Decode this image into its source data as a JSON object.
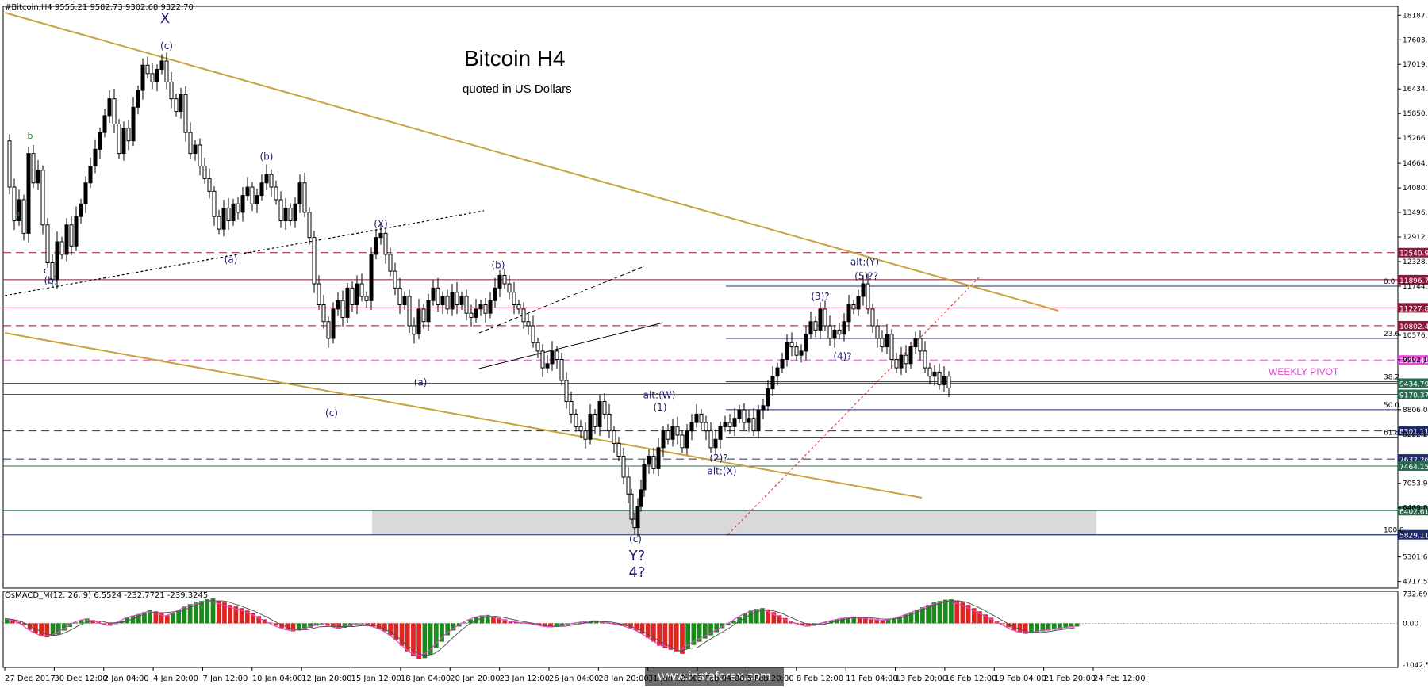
{
  "header": {
    "symbol_info": "#Bitcoin,H4  9555.21 9582.73 9302.68 9322.70"
  },
  "title": "Bitcoin H4",
  "subtitle": "quoted in US Dollars",
  "weekly_pivot_label": "WEEKLY PIVOT",
  "watermark": "www.instaforex.com",
  "colors": {
    "bull_candle": "#000000",
    "trend_channel": "#c8a23c",
    "support_band": "#d9d9d9",
    "pivot_line": "#e24ad6",
    "macd_up": "#1a8a1a",
    "macd_down": "#e0241f"
  },
  "chart_data": {
    "type": "candlestick",
    "price_axis": {
      "ticks": [
        18187.55,
        17603.05,
        17019.25,
        16434.9,
        15850.85,
        15266.7,
        14664.2,
        14080.25,
        13496.7,
        12912.6,
        12328.55,
        11744.4,
        10576.2,
        9992.1,
        8806.0,
        8222.2,
        7053.9,
        6469.8,
        5301.6,
        4717.5
      ],
      "min": 4560,
      "max": 18400
    },
    "time_axis": [
      "27 Dec 2017",
      "30 Dec 12:00",
      "2 Jan 04:00",
      "4 Jan 20:00",
      "7 Jan 12:00",
      "10 Jan 04:00",
      "12 Jan 20:00",
      "15 Jan 12:00",
      "18 Jan 04:00",
      "20 Jan 20:00",
      "23 Jan 12:00",
      "26 Jan 04:00",
      "28 Jan 20:00",
      "31 Jan 12:00",
      "3 Feb 04:00",
      "5 Feb 20:00",
      "8 Feb 12:00",
      "11 Feb 04:00",
      "13 Feb 20:00",
      "16 Feb 12:00",
      "19 Feb 04:00",
      "21 Feb 20:00",
      "24 Feb 12:00"
    ],
    "price_path": [
      [
        0,
        15200
      ],
      [
        6,
        14100
      ],
      [
        12,
        13300
      ],
      [
        18,
        13800
      ],
      [
        24,
        13000
      ],
      [
        30,
        14900
      ],
      [
        36,
        14200
      ],
      [
        42,
        14500
      ],
      [
        48,
        13200
      ],
      [
        54,
        12300
      ],
      [
        60,
        11900
      ],
      [
        66,
        12800
      ],
      [
        72,
        12500
      ],
      [
        78,
        13200
      ],
      [
        84,
        12700
      ],
      [
        90,
        13400
      ],
      [
        96,
        13700
      ],
      [
        102,
        14200
      ],
      [
        108,
        14600
      ],
      [
        114,
        15000
      ],
      [
        120,
        15400
      ],
      [
        126,
        15800
      ],
      [
        132,
        16200
      ],
      [
        138,
        15600
      ],
      [
        144,
        14900
      ],
      [
        150,
        15500
      ],
      [
        156,
        15200
      ],
      [
        162,
        16000
      ],
      [
        168,
        16400
      ],
      [
        174,
        17000
      ],
      [
        180,
        16800
      ],
      [
        186,
        16600
      ],
      [
        192,
        16900
      ],
      [
        198,
        17100
      ],
      [
        204,
        16600
      ],
      [
        210,
        16200
      ],
      [
        216,
        15900
      ],
      [
        222,
        16300
      ],
      [
        228,
        15400
      ],
      [
        234,
        14900
      ],
      [
        240,
        15100
      ],
      [
        246,
        14600
      ],
      [
        252,
        14300
      ],
      [
        258,
        14000
      ],
      [
        264,
        13400
      ],
      [
        270,
        13100
      ],
      [
        276,
        13600
      ],
      [
        282,
        13300
      ],
      [
        288,
        13700
      ],
      [
        294,
        13500
      ],
      [
        300,
        13900
      ],
      [
        306,
        14100
      ],
      [
        312,
        13700
      ],
      [
        318,
        13900
      ],
      [
        324,
        14200
      ],
      [
        330,
        14400
      ],
      [
        336,
        14100
      ],
      [
        342,
        13800
      ],
      [
        348,
        13300
      ],
      [
        354,
        13600
      ],
      [
        360,
        13300
      ],
      [
        366,
        13700
      ],
      [
        372,
        14200
      ],
      [
        378,
        13500
      ],
      [
        384,
        12900
      ],
      [
        390,
        11800
      ],
      [
        396,
        11300
      ],
      [
        402,
        10900
      ],
      [
        408,
        10500
      ],
      [
        414,
        11200
      ],
      [
        420,
        11400
      ],
      [
        426,
        11000
      ],
      [
        432,
        11700
      ],
      [
        438,
        11300
      ],
      [
        444,
        11800
      ],
      [
        450,
        11500
      ],
      [
        456,
        11400
      ],
      [
        462,
        12500
      ],
      [
        468,
        12900
      ],
      [
        474,
        13000
      ],
      [
        480,
        12500
      ],
      [
        486,
        12100
      ],
      [
        492,
        11700
      ],
      [
        498,
        11300
      ],
      [
        504,
        11500
      ],
      [
        510,
        10800
      ],
      [
        516,
        10600
      ],
      [
        522,
        11200
      ],
      [
        528,
        10900
      ],
      [
        534,
        11400
      ],
      [
        540,
        11700
      ],
      [
        546,
        11300
      ],
      [
        552,
        11500
      ],
      [
        558,
        11200
      ],
      [
        564,
        11600
      ],
      [
        570,
        11300
      ],
      [
        576,
        11500
      ],
      [
        582,
        11100
      ],
      [
        588,
        11000
      ],
      [
        594,
        11200
      ],
      [
        600,
        11300
      ],
      [
        606,
        11100
      ],
      [
        612,
        11400
      ],
      [
        618,
        11700
      ],
      [
        624,
        12000
      ],
      [
        630,
        11800
      ],
      [
        636,
        11600
      ],
      [
        642,
        11300
      ],
      [
        648,
        11200
      ],
      [
        654,
        10900
      ],
      [
        660,
        10800
      ],
      [
        666,
        10400
      ],
      [
        672,
        10200
      ],
      [
        678,
        9800
      ],
      [
        684,
        9900
      ],
      [
        690,
        10200
      ],
      [
        696,
        10000
      ],
      [
        702,
        9500
      ],
      [
        708,
        9000
      ],
      [
        714,
        8700
      ],
      [
        720,
        8400
      ],
      [
        726,
        8300
      ],
      [
        732,
        8100
      ],
      [
        738,
        8700
      ],
      [
        744,
        8400
      ],
      [
        750,
        9000
      ],
      [
        756,
        8700
      ],
      [
        762,
        8300
      ],
      [
        768,
        8000
      ],
      [
        774,
        7700
      ],
      [
        780,
        7200
      ],
      [
        786,
        6800
      ],
      [
        790,
        6200
      ],
      [
        794,
        6000
      ],
      [
        798,
        6500
      ],
      [
        802,
        6900
      ],
      [
        806,
        7500
      ],
      [
        812,
        7700
      ],
      [
        818,
        7400
      ],
      [
        824,
        7900
      ],
      [
        830,
        8300
      ],
      [
        836,
        8100
      ],
      [
        842,
        8400
      ],
      [
        848,
        8200
      ],
      [
        854,
        7900
      ],
      [
        860,
        8300
      ],
      [
        866,
        8500
      ],
      [
        872,
        8700
      ],
      [
        878,
        8500
      ],
      [
        884,
        8300
      ],
      [
        890,
        7900
      ],
      [
        896,
        8100
      ],
      [
        902,
        8400
      ],
      [
        908,
        8500
      ],
      [
        914,
        8400
      ],
      [
        920,
        8600
      ],
      [
        926,
        8800
      ],
      [
        932,
        8500
      ],
      [
        938,
        8600
      ],
      [
        944,
        8300
      ],
      [
        950,
        8800
      ],
      [
        956,
        8900
      ],
      [
        962,
        9300
      ],
      [
        968,
        9600
      ],
      [
        974,
        9800
      ],
      [
        980,
        10000
      ],
      [
        986,
        10400
      ],
      [
        992,
        10300
      ],
      [
        998,
        10100
      ],
      [
        1004,
        10200
      ],
      [
        1010,
        10600
      ],
      [
        1016,
        10900
      ],
      [
        1022,
        10700
      ],
      [
        1028,
        11200
      ],
      [
        1034,
        10800
      ],
      [
        1040,
        10500
      ],
      [
        1046,
        10700
      ],
      [
        1052,
        10600
      ],
      [
        1058,
        10900
      ],
      [
        1064,
        11300
      ],
      [
        1070,
        11200
      ],
      [
        1076,
        11500
      ],
      [
        1082,
        11800
      ],
      [
        1088,
        11200
      ],
      [
        1094,
        10800
      ],
      [
        1100,
        10500
      ],
      [
        1106,
        10300
      ],
      [
        1112,
        10600
      ],
      [
        1118,
        10000
      ],
      [
        1124,
        9800
      ],
      [
        1130,
        10100
      ],
      [
        1136,
        9900
      ],
      [
        1142,
        10300
      ],
      [
        1148,
        10500
      ],
      [
        1154,
        10200
      ],
      [
        1160,
        9800
      ],
      [
        1166,
        9600
      ],
      [
        1172,
        9700
      ],
      [
        1178,
        9400
      ],
      [
        1184,
        9600
      ],
      [
        1190,
        9322
      ]
    ],
    "horizontal_levels": [
      {
        "price": 12540.97,
        "label": "12540.97",
        "style": "dash",
        "color": "#8b1a3a"
      },
      {
        "price": 11896.71,
        "label": "11896.71",
        "style": "solid",
        "color": "#8b1a3a"
      },
      {
        "price": 11227.89,
        "label": "11227.89",
        "style": "solid",
        "color": "#8b1a3a"
      },
      {
        "price": 10802.45,
        "label": "10802.45",
        "style": "dash",
        "color": "#8b1a3a"
      },
      {
        "price": 9986.41,
        "label": "9986.41",
        "style": "dash",
        "color": "#e24ad6"
      },
      {
        "price": 9434.79,
        "label": "9434.79",
        "style": "solid",
        "color": "#2a6b4f"
      },
      {
        "price": 9170.37,
        "label": "9170.37",
        "style": "solid",
        "color": "#2a6b4f"
      },
      {
        "price": 8301.11,
        "label": "8301.11",
        "style": "dash",
        "color": "#1f2b6e"
      },
      {
        "price": 7632.26,
        "label": "7632.26",
        "style": "dash",
        "color": "#1f2b6e"
      },
      {
        "price": 7464.15,
        "label": "7464.15",
        "style": "solid",
        "color": "#2a6b4f"
      },
      {
        "price": 6402.61,
        "label": "6402.61",
        "style": "solid",
        "color": "#2a6b4f"
      },
      {
        "price": 5829.11,
        "label": "5829.11",
        "style": "solid",
        "color": "#1f2b6e"
      }
    ],
    "fibonacci": [
      {
        "ratio": "0.0",
        "price": 11744
      },
      {
        "ratio": "23.6",
        "price": 10500
      },
      {
        "ratio": "38.2",
        "price": 9470
      },
      {
        "ratio": "50.0",
        "price": 8806
      },
      {
        "ratio": "61.8",
        "price": 8150
      },
      {
        "ratio": "100.0",
        "price": 5829
      }
    ],
    "support_zone": {
      "from": 5829,
      "to": 6402
    },
    "wave_labels": [
      {
        "t": "X",
        "x": 202,
        "p": 18000,
        "size": 18
      },
      {
        "t": "(c)",
        "x": 204,
        "p": 17380,
        "size": 12
      },
      {
        "t": "b",
        "x": 32,
        "p": 15250,
        "size": 11,
        "color": "#2b7a2b"
      },
      {
        "t": "a",
        "x": 16,
        "p": 13400,
        "size": 11,
        "color": "#2b7a2b"
      },
      {
        "t": "c",
        "x": 52,
        "p": 12050,
        "size": 11
      },
      {
        "t": "(b)",
        "x": 58,
        "p": 11800,
        "size": 12
      },
      {
        "t": "(a)",
        "x": 285,
        "p": 12300,
        "size": 12
      },
      {
        "t": "(b)",
        "x": 330,
        "p": 14750,
        "size": 12
      },
      {
        "t": "(X)",
        "x": 474,
        "p": 13150,
        "size": 12
      },
      {
        "t": "(c)",
        "x": 412,
        "p": 8650,
        "size": 12
      },
      {
        "t": "(a)",
        "x": 524,
        "p": 9380,
        "size": 12
      },
      {
        "t": "(b)",
        "x": 622,
        "p": 12170,
        "size": 12
      },
      {
        "t": "alt:(W)",
        "x": 825,
        "p": 9080,
        "size": 12
      },
      {
        "t": "(1)",
        "x": 826,
        "p": 8780,
        "size": 12
      },
      {
        "t": "(2)?",
        "x": 900,
        "p": 7580,
        "size": 12
      },
      {
        "t": "alt:(X)",
        "x": 904,
        "p": 7270,
        "size": 12
      },
      {
        "t": "(c)",
        "x": 795,
        "p": 5650,
        "size": 12
      },
      {
        "t": "Y?",
        "x": 797,
        "p": 5220,
        "size": 18
      },
      {
        "t": "4?",
        "x": 797,
        "p": 4820,
        "size": 18
      },
      {
        "t": "(3)?",
        "x": 1028,
        "p": 11420,
        "size": 12
      },
      {
        "t": "(4)?",
        "x": 1056,
        "p": 10000,
        "size": 12
      },
      {
        "t": "alt:(Y)",
        "x": 1084,
        "p": 12240,
        "size": 12
      },
      {
        "t": "(5)??",
        "x": 1086,
        "p": 11900,
        "size": 12
      }
    ],
    "macd": {
      "label": "OsMACD_M(12, 26, 9) 6.5524 -232.7721 -239.3245",
      "ticks": [
        732.6873,
        0.0,
        -1042.5664
      ],
      "min": -1100,
      "max": 800,
      "values": [
        120,
        90,
        40,
        -40,
        -160,
        -250,
        -320,
        -350,
        -320,
        -280,
        -180,
        -90,
        20,
        80,
        120,
        80,
        40,
        -20,
        -60,
        -10,
        60,
        140,
        190,
        230,
        280,
        330,
        300,
        250,
        200,
        260,
        340,
        420,
        480,
        520,
        560,
        600,
        620,
        560,
        520,
        460,
        420,
        380,
        320,
        260,
        180,
        100,
        20,
        -60,
        -120,
        -170,
        -200,
        -180,
        -150,
        -110,
        -60,
        -20,
        -50,
        -90,
        -130,
        -110,
        -70,
        -30,
        -10,
        -40,
        -80,
        -130,
        -200,
        -300,
        -420,
        -560,
        -700,
        -820,
        -900,
        -870,
        -780,
        -620,
        -460,
        -300,
        -180,
        -80,
        20,
        100,
        160,
        200,
        210,
        180,
        140,
        100,
        60,
        40,
        20,
        10,
        -20,
        -50,
        -80,
        -100,
        -90,
        -70,
        -40,
        -10,
        20,
        40,
        60,
        70,
        50,
        20,
        -10,
        -40,
        -70,
        -120,
        -180,
        -260,
        -360,
        -460,
        -560,
        -620,
        -660,
        -700,
        -760,
        -640,
        -540,
        -460,
        -380,
        -300,
        -220,
        -120,
        -40,
        60,
        160,
        250,
        320,
        360,
        380,
        350,
        280,
        200,
        130,
        60,
        10,
        -40,
        -80,
        -60,
        -20,
        20,
        60,
        100,
        130,
        150,
        170,
        160,
        140,
        120,
        100,
        80,
        90,
        120,
        160,
        220,
        280,
        340,
        400,
        460,
        520,
        560,
        590,
        600,
        570,
        520,
        460,
        380,
        300,
        220,
        140,
        60,
        -20,
        -100,
        -180,
        -230,
        -260,
        -250,
        -230,
        -200,
        -180,
        -160,
        -140,
        -120,
        -100,
        -80
      ]
    }
  }
}
